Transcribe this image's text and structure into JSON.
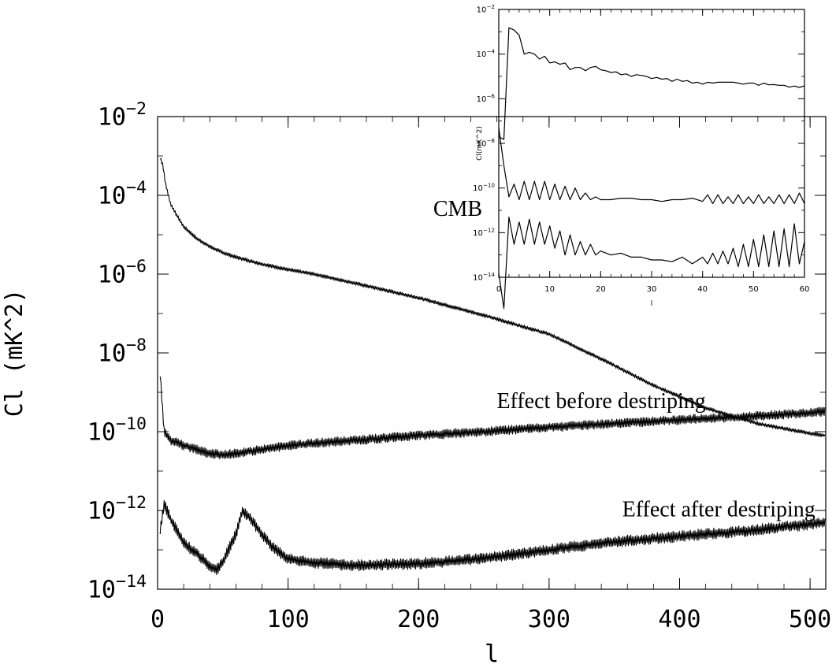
{
  "chart_data": [
    {
      "type": "line",
      "xlabel": "l",
      "ylabel": "Cl (mK^2)",
      "xlim": [
        0,
        512
      ],
      "ylim": [
        1e-14,
        0.01
      ],
      "yscale": "log",
      "x_ticks": [
        0,
        100,
        200,
        300,
        400,
        500
      ],
      "x_tick_labels": [
        "0",
        "100",
        "200",
        "300",
        "400",
        "500"
      ],
      "y_tick_labels": [
        {
          "value": 0.01,
          "base": "10",
          "exp": "−2"
        },
        {
          "value": 0.0001,
          "base": "10",
          "exp": "−4"
        },
        {
          "value": 1e-06,
          "base": "10",
          "exp": "−6"
        },
        {
          "value": 1e-08,
          "base": "10",
          "exp": "−8"
        },
        {
          "value": 1e-10,
          "base": "10",
          "exp": "−10"
        },
        {
          "value": 1e-12,
          "base": "10",
          "exp": "−12"
        },
        {
          "value": 1e-14,
          "base": "10",
          "exp": "−14"
        }
      ],
      "annotations": [
        {
          "text": "CMB",
          "x": 230,
          "y": 3e-05
        },
        {
          "text": "Effect before destriping",
          "x": 340,
          "y": 4e-10
        },
        {
          "text": "Effect after destriping",
          "x": 430,
          "y": 7e-13
        }
      ],
      "series": [
        {
          "x": [
            2,
            4,
            6,
            10,
            15,
            20,
            30,
            40,
            50,
            60,
            80,
            100,
            120,
            150,
            200,
            250,
            300,
            340,
            380,
            420,
            460,
            500,
            512
          ],
          "y": [
            0.0009,
            0.0006,
            0.0002,
            6e-05,
            3e-05,
            1.6e-05,
            8e-06,
            5e-06,
            3.5e-06,
            2.7e-06,
            1.8e-06,
            1.3e-06,
            1e-06,
            6e-07,
            2.5e-07,
            9e-08,
            3e-08,
            7e-09,
            1.5e-09,
            4e-10,
            1.6e-10,
            9e-11,
            8e-11
          ],
          "noise": 0.06
        },
        {
          "x": [
            2,
            5,
            10,
            20,
            30,
            40,
            50,
            60,
            80,
            100,
            150,
            200,
            250,
            300,
            350,
            400,
            450,
            500,
            512
          ],
          "y": [
            3e-09,
            1e-10,
            6e-11,
            4.5e-11,
            3.5e-11,
            2.8e-11,
            2.6e-11,
            2.8e-11,
            3.5e-11,
            4.5e-11,
            6e-11,
            8e-11,
            1e-10,
            1.3e-10,
            1.6e-10,
            2e-10,
            2.4e-10,
            3e-10,
            3.3e-10
          ],
          "noise": 0.15
        },
        {
          "x": [
            2,
            5,
            10,
            20,
            30,
            40,
            45,
            50,
            60,
            65,
            70,
            80,
            90,
            100,
            110,
            130,
            150,
            200,
            250,
            300,
            350,
            400,
            450,
            500,
            512
          ],
          "y": [
            3e-13,
            1.5e-12,
            6e-13,
            1.5e-13,
            8e-14,
            4e-14,
            3e-14,
            5e-14,
            2.5e-13,
            1e-12,
            7e-13,
            2.5e-13,
            1e-13,
            6e-14,
            5e-14,
            4.5e-14,
            4e-14,
            4.5e-14,
            6e-14,
            1e-13,
            1.6e-13,
            2.2e-13,
            3e-13,
            4.5e-13,
            5e-13
          ],
          "noise": 0.18
        }
      ]
    },
    {
      "type": "line",
      "xlabel": "l",
      "ylabel": "Cl(mK^2)",
      "xlim": [
        0,
        60
      ],
      "ylim": [
        1e-14,
        0.01
      ],
      "yscale": "log",
      "x_ticks": [
        0,
        10,
        20,
        30,
        40,
        50,
        60
      ],
      "x_tick_labels": [
        "0",
        "10",
        "20",
        "30",
        "40",
        "50",
        "60"
      ],
      "y_tick_labels": [
        {
          "value": 0.01,
          "base": "10",
          "exp": "−2"
        },
        {
          "value": 0.0001,
          "base": "10",
          "exp": "−4"
        },
        {
          "value": 1e-06,
          "base": "10",
          "exp": "−6"
        },
        {
          "value": 1e-08,
          "base": "10",
          "exp": "−8"
        },
        {
          "value": 1e-10,
          "base": "10",
          "exp": "−10"
        },
        {
          "value": 1e-12,
          "base": "10",
          "exp": "−12"
        },
        {
          "value": 1e-14,
          "base": "10",
          "exp": "−14"
        }
      ],
      "series": [
        {
          "x": [
            0,
            1,
            2,
            3,
            4,
            5,
            6,
            7,
            8,
            9,
            10,
            11,
            12,
            13,
            14,
            15,
            16,
            17,
            18,
            19,
            20,
            21,
            22,
            23,
            24,
            25,
            26,
            27,
            28,
            29,
            30,
            31,
            32,
            33,
            34,
            35,
            36,
            37,
            38,
            39,
            40,
            41,
            42,
            43,
            44,
            45,
            46,
            47,
            48,
            49,
            50,
            51,
            52,
            53,
            54,
            55,
            56,
            57,
            58,
            59,
            60
          ],
          "y": [
            2e-08,
            1.5e-08,
            0.0015,
            0.0012,
            0.0007,
            0.0001,
            0.00012,
            0.0001,
            6e-05,
            8e-05,
            4e-05,
            4.5e-05,
            3.5e-05,
            4e-05,
            2e-05,
            2.5e-05,
            2.5e-05,
            1.8e-05,
            2.5e-05,
            2.8e-05,
            2e-05,
            1.8e-05,
            1.5e-05,
            1.6e-05,
            1.2e-05,
            1.3e-05,
            1e-05,
            1.2e-05,
            1.1e-05,
            1e-05,
            8e-06,
            9e-06,
            7.5e-06,
            8e-06,
            6e-06,
            7.5e-06,
            6e-06,
            6.5e-06,
            5e-06,
            5.5e-06,
            4.5e-06,
            5.5e-06,
            5e-06,
            5.5e-06,
            5.5e-06,
            5.5e-06,
            5.5e-06,
            5e-06,
            4.5e-06,
            5e-06,
            5e-06,
            4e-06,
            5e-06,
            4.2e-06,
            4.3e-06,
            4e-06,
            4e-06,
            3.3e-06,
            3.7e-06,
            3.2e-06,
            3.8e-06
          ]
        },
        {
          "x": [
            0,
            1,
            2,
            3,
            4,
            5,
            6,
            7,
            8,
            9,
            10,
            11,
            12,
            13,
            14,
            15,
            16,
            17,
            18,
            19,
            20,
            22,
            24,
            26,
            28,
            30,
            32,
            34,
            36,
            38,
            40,
            41,
            42,
            43,
            44,
            45,
            46,
            47,
            48,
            49,
            50,
            51,
            52,
            53,
            54,
            55,
            56,
            57,
            58,
            59,
            60
          ],
          "y": [
            5e-08,
            1e-09,
            4e-11,
            1.5e-10,
            3e-11,
            2e-10,
            3e-11,
            2e-10,
            3e-11,
            2e-10,
            3e-11,
            1.5e-10,
            3e-11,
            1.2e-10,
            3e-11,
            1e-10,
            3e-11,
            6e-11,
            3e-11,
            4e-11,
            3e-11,
            3e-11,
            3.5e-11,
            3.5e-11,
            3e-11,
            3e-11,
            2.5e-11,
            3e-11,
            3e-11,
            3.5e-11,
            2.5e-11,
            5e-11,
            2e-11,
            5e-11,
            2e-11,
            4e-11,
            2e-11,
            5e-11,
            2e-11,
            4e-11,
            2e-11,
            5e-11,
            2e-11,
            4e-11,
            2e-11,
            5e-11,
            2e-11,
            5e-11,
            2e-11,
            6e-11,
            2e-11
          ]
        },
        {
          "x": [
            0,
            1,
            2,
            3,
            4,
            5,
            6,
            7,
            8,
            9,
            10,
            11,
            12,
            13,
            14,
            15,
            16,
            17,
            18,
            19,
            20,
            22,
            24,
            26,
            28,
            30,
            32,
            34,
            36,
            38,
            40,
            41,
            42,
            43,
            44,
            45,
            46,
            47,
            48,
            49,
            50,
            51,
            52,
            53,
            54,
            55,
            56,
            57,
            58,
            59,
            60
          ],
          "y": [
            1.5e-14,
            4e-16,
            5e-12,
            3e-13,
            3e-12,
            3e-13,
            4e-12,
            3e-13,
            3e-12,
            3e-13,
            2e-12,
            2e-13,
            1.2e-12,
            1e-13,
            8e-13,
            1e-13,
            4e-13,
            1e-13,
            3e-13,
            1e-13,
            1.5e-13,
            1e-13,
            1.2e-13,
            8e-14,
            8e-14,
            6e-14,
            6e-14,
            5e-14,
            8e-14,
            4e-14,
            8e-14,
            4e-14,
            1.2e-13,
            4e-14,
            1.5e-13,
            4e-14,
            2e-13,
            3e-14,
            3e-13,
            3e-14,
            5e-13,
            3e-14,
            8e-13,
            3e-14,
            1.2e-12,
            3e-14,
            1.5e-12,
            3e-14,
            2.5e-12,
            4e-14,
            4e-13
          ]
        }
      ]
    }
  ]
}
